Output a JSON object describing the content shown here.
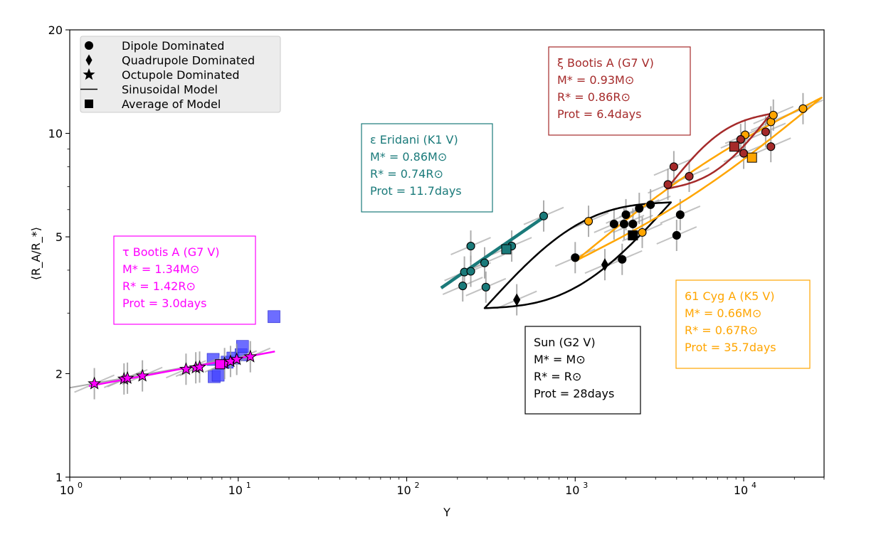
{
  "chart_data": {
    "type": "scatter",
    "xlabel": "Y",
    "ylabel": "⟨R_A/R_*⟩",
    "xscale": "log",
    "yscale": "log",
    "xlim": [
      1,
      30000
    ],
    "ylim": [
      1,
      20
    ],
    "x_ticks": [
      {
        "value": 1,
        "label": "10",
        "exp": "0"
      },
      {
        "value": 10,
        "label": "10",
        "exp": "1"
      },
      {
        "value": 100,
        "label": "10",
        "exp": "2"
      },
      {
        "value": 1000,
        "label": "10",
        "exp": "3"
      },
      {
        "value": 10000,
        "label": "10",
        "exp": "4"
      }
    ],
    "y_ticks": [
      {
        "value": 1,
        "label": "1"
      },
      {
        "value": 2,
        "label": "2"
      },
      {
        "value": 5,
        "label": "5"
      },
      {
        "value": 10,
        "label": "10"
      },
      {
        "value": 20,
        "label": "20"
      }
    ],
    "grid": false,
    "legend_position": "top-left",
    "legend": [
      {
        "label": "Dipole Dominated",
        "marker": "circle"
      },
      {
        "label": "Quadrupole Dominated",
        "marker": "diamond"
      },
      {
        "label": "Octupole Dominated",
        "marker": "star"
      },
      {
        "label": "Sinusoidal Model",
        "marker": "line"
      },
      {
        "label": "Average of Model",
        "marker": "square"
      }
    ],
    "stars": [
      {
        "id": "tau-bootis",
        "color": "#ff00ff",
        "label_lines": [
          "τ Bootis A (G7 V)",
          "M* = 1.34M⊙",
          "R* = 1.42R⊙",
          "Prot = 3.0days"
        ],
        "points": [
          {
            "x": 1.4,
            "y": 1.87,
            "m": "star"
          },
          {
            "x": 2.1,
            "y": 1.93,
            "m": "star"
          },
          {
            "x": 2.2,
            "y": 1.94,
            "m": "star"
          },
          {
            "x": 2.7,
            "y": 1.97,
            "m": "star"
          },
          {
            "x": 4.9,
            "y": 2.06,
            "m": "star"
          },
          {
            "x": 5.6,
            "y": 2.08,
            "m": "star"
          },
          {
            "x": 5.9,
            "y": 2.09,
            "m": "star"
          },
          {
            "x": 8.3,
            "y": 2.14,
            "m": "star"
          },
          {
            "x": 9.0,
            "y": 2.17,
            "m": "star"
          },
          {
            "x": 9.8,
            "y": 2.2,
            "m": "star"
          },
          {
            "x": 11.8,
            "y": 2.24,
            "m": "star"
          }
        ],
        "model": {
          "x_range": [
            1.3,
            16.5
          ],
          "y_range": [
            1.84,
            2.32
          ]
        },
        "average": {
          "x": 7.8,
          "y": 2.13
        }
      },
      {
        "id": "eps-eridani",
        "color": "#1a7a7a",
        "label_lines": [
          "ε Eridani (K1 V)",
          "M* = 0.86M⊙",
          "R* = 0.74R⊙",
          "Prot = 11.7days"
        ],
        "points": [
          {
            "x": 215,
            "y": 3.6,
            "m": "circle"
          },
          {
            "x": 220,
            "y": 3.95,
            "m": "circle"
          },
          {
            "x": 240,
            "y": 3.97,
            "m": "circle"
          },
          {
            "x": 240,
            "y": 4.7,
            "m": "circle"
          },
          {
            "x": 290,
            "y": 4.2,
            "m": "circle"
          },
          {
            "x": 295,
            "y": 3.57,
            "m": "circle"
          },
          {
            "x": 420,
            "y": 4.7,
            "m": "circle"
          },
          {
            "x": 650,
            "y": 5.75,
            "m": "circle"
          }
        ],
        "model": {
          "x_range": [
            160,
            650
          ],
          "y_range": [
            3.55,
            5.7
          ]
        },
        "average": {
          "x": 390,
          "y": 4.6
        }
      },
      {
        "id": "sun",
        "color": "#000000",
        "label_lines": [
          "Sun (G2 V)",
          "M* = M⊙",
          "R* = R⊙",
          "Prot = 28days"
        ],
        "points": [
          {
            "x": 1000,
            "y": 4.35,
            "m": "circle"
          },
          {
            "x": 1700,
            "y": 5.45,
            "m": "circle"
          },
          {
            "x": 1900,
            "y": 4.3,
            "m": "circle"
          },
          {
            "x": 1950,
            "y": 5.45,
            "m": "circle"
          },
          {
            "x": 2000,
            "y": 5.8,
            "m": "circle"
          },
          {
            "x": 2200,
            "y": 5.45,
            "m": "circle"
          },
          {
            "x": 2400,
            "y": 6.05,
            "m": "circle"
          },
          {
            "x": 2800,
            "y": 6.2,
            "m": "circle"
          },
          {
            "x": 4000,
            "y": 5.05,
            "m": "circle"
          },
          {
            "x": 4200,
            "y": 5.8,
            "m": "circle"
          },
          {
            "x": 450,
            "y": 3.28,
            "m": "diamond"
          },
          {
            "x": 1500,
            "y": 4.15,
            "m": "diamond"
          }
        ],
        "model": {
          "x_range": [
            290,
            3700
          ],
          "y_range": [
            3.1,
            6.3
          ]
        },
        "average": {
          "x": 2200,
          "y": 5.05
        }
      },
      {
        "id": "61-cyg",
        "color": "#ffa500",
        "label_lines": [
          "61 Cyg A (K5 V)",
          "M* = 0.66M⊙",
          "R* = 0.67R⊙",
          "Prot = 35.7days"
        ],
        "points": [
          {
            "x": 1200,
            "y": 5.55,
            "m": "circle"
          },
          {
            "x": 2500,
            "y": 5.15,
            "m": "circle"
          },
          {
            "x": 10200,
            "y": 9.9,
            "m": "circle"
          },
          {
            "x": 14500,
            "y": 10.8,
            "m": "circle"
          },
          {
            "x": 15000,
            "y": 11.3,
            "m": "circle"
          },
          {
            "x": 22500,
            "y": 11.8,
            "m": "circle"
          }
        ],
        "model": {
          "x_range": [
            1000,
            29000
          ],
          "y_range": [
            4.25,
            12.7
          ]
        },
        "average": {
          "x": 11200,
          "y": 8.5
        }
      },
      {
        "id": "xi-bootis",
        "color": "#a52a2a",
        "label_lines": [
          "ξ Bootis A (G7 V)",
          "M* = 0.93M⊙",
          "R* = 0.86R⊙",
          "Prot = 6.4days"
        ],
        "points": [
          {
            "x": 3550,
            "y": 7.1,
            "m": "circle"
          },
          {
            "x": 3850,
            "y": 8.0,
            "m": "circle"
          },
          {
            "x": 4750,
            "y": 7.5,
            "m": "circle"
          },
          {
            "x": 9600,
            "y": 9.6,
            "m": "circle"
          },
          {
            "x": 10000,
            "y": 8.75,
            "m": "circle"
          },
          {
            "x": 13500,
            "y": 10.1,
            "m": "circle"
          },
          {
            "x": 14500,
            "y": 9.15,
            "m": "circle"
          }
        ],
        "model": {
          "x_range": [
            3500,
            14500
          ],
          "y_range": [
            6.9,
            11.4
          ]
        },
        "average": {
          "x": 8800,
          "y": 9.15
        }
      }
    ],
    "extra_squares": {
      "color": "#4444ff",
      "points": [
        {
          "x": 7.2,
          "y": 1.96
        },
        {
          "x": 7.6,
          "y": 1.98
        },
        {
          "x": 7.1,
          "y": 2.2
        },
        {
          "x": 8.6,
          "y": 2.16
        },
        {
          "x": 9.3,
          "y": 2.22
        },
        {
          "x": 10.4,
          "y": 2.27
        },
        {
          "x": 10.6,
          "y": 2.4
        },
        {
          "x": 16.3,
          "y": 2.93
        }
      ]
    }
  }
}
